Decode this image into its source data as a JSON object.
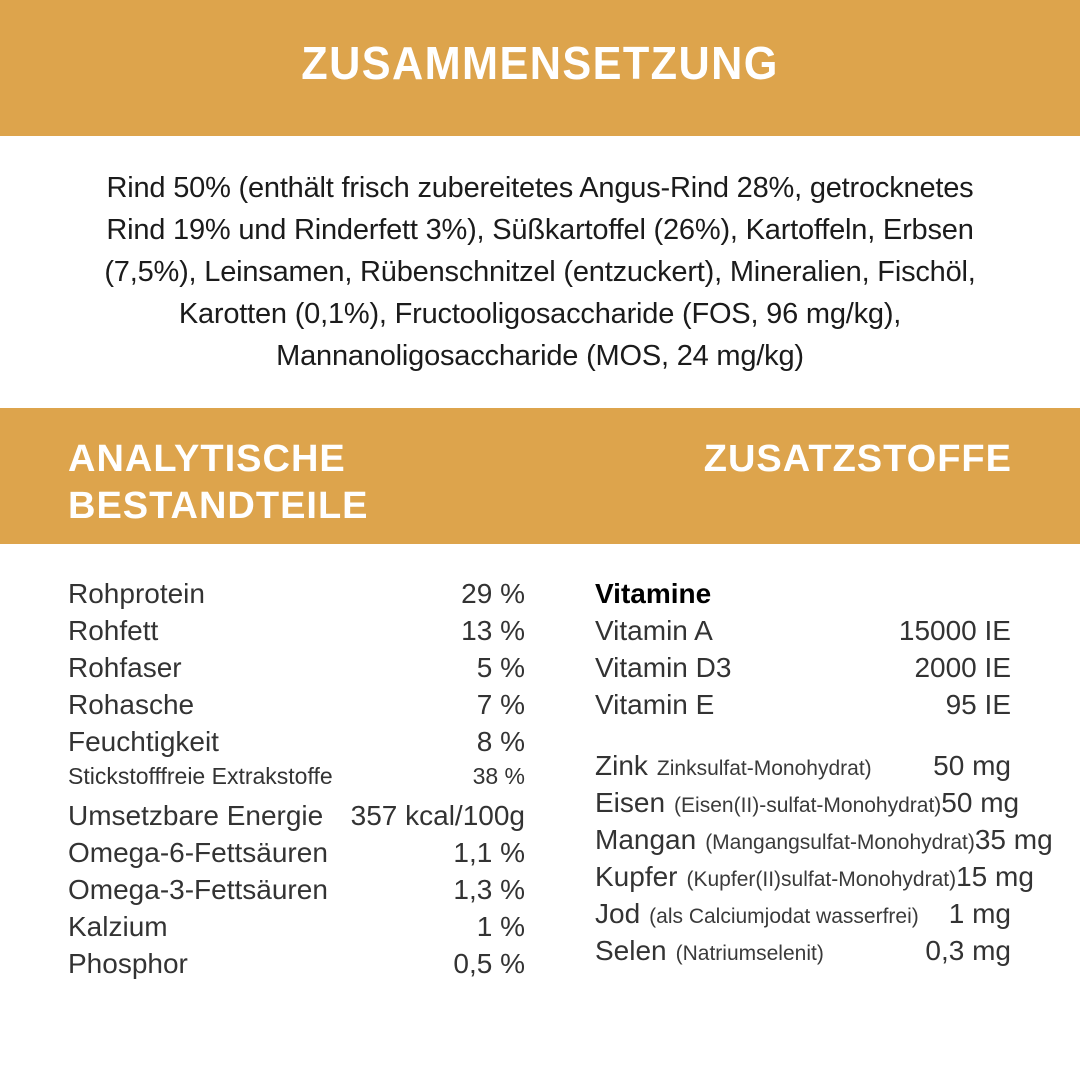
{
  "page": {
    "accent_color": "#DDA44C",
    "background_color": "#FFFFFF",
    "heading_text_color": "#FFFFFF",
    "body_text_color": "#1B1B1B"
  },
  "header": {
    "title": "ZUSAMMENSETZUNG"
  },
  "composition": {
    "text": "Rind 50% (enthält frisch zubereitetes Angus-Rind 28%, getrocknetes Rind 19% und Rinderfett 3%), Süßkartoffel (26%), Kartoffeln, Erbsen (7,5%), Leinsamen, Rübenschnitzel (entzuckert), Mineralien, Fischöl, Karotten (0,1%), Fructooligosaccharide (FOS, 96 mg/kg), Mannanoligosaccharide (MOS, 24 mg/kg)"
  },
  "section_band": {
    "left_title_line1": "ANALYTISCHE",
    "left_title_line2": "BESTANDTEILE",
    "right_title": "ZUSATZSTOFFE"
  },
  "analytical": {
    "rows": [
      {
        "label": "Rohprotein",
        "value": "29 %"
      },
      {
        "label": "Rohfett",
        "value": "13 %"
      },
      {
        "label": "Rohfaser",
        "value": "5 %"
      },
      {
        "label": "Rohasche",
        "value": "7 %"
      },
      {
        "label": "Feuchtigkeit",
        "value": "8 %"
      },
      {
        "label": "Stickstofffreie Extrakstoffe",
        "value": "38 %"
      },
      {
        "label": "Umsetzbare Energie",
        "value": "357 kcal/100g"
      },
      {
        "label": "Omega-6-Fettsäuren",
        "value": "1,1 %"
      },
      {
        "label": "Omega-3-Fettsäuren",
        "value": "1,3 %"
      },
      {
        "label": "Kalzium",
        "value": "1 %"
      },
      {
        "label": "Phosphor",
        "value": "0,5 %"
      }
    ]
  },
  "additives": {
    "vitamins_header": "Vitamine",
    "vitamins": [
      {
        "label": "Vitamin A",
        "value": "15000 IE"
      },
      {
        "label": "Vitamin D3",
        "value": "2000 IE"
      },
      {
        "label": "Vitamin E",
        "value": "95 IE"
      }
    ],
    "minerals": [
      {
        "label": "Zink",
        "note": "Zinksulfat-Monohydrat)",
        "value": "50 mg"
      },
      {
        "label": "Eisen",
        "note": "(Eisen(II)-sulfat-Monohydrat)",
        "value": "50 mg"
      },
      {
        "label": "Mangan",
        "note": "(Mangangsulfat-Monohydrat)",
        "value": "35 mg"
      },
      {
        "label": "Kupfer",
        "note": "(Kupfer(II)sulfat-Monohydrat)",
        "value": "15 mg"
      },
      {
        "label": "Jod",
        "note": "(als Calciumjodat wasserfrei)",
        "value": "1 mg"
      },
      {
        "label": "Selen",
        "note": "(Natriumselenit)",
        "value": "0,3 mg"
      }
    ]
  }
}
